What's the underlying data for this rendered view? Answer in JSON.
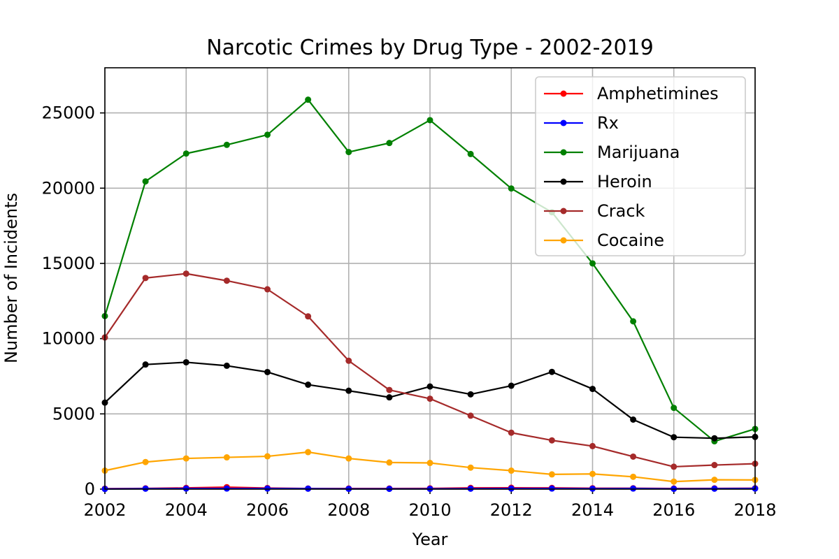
{
  "chart_data": {
    "type": "line",
    "title": "Narcotic Crimes by Drug Type - 2002-2019",
    "xlabel": "Year",
    "ylabel": "Number of Incidents",
    "xlim": [
      2002,
      2018
    ],
    "ylim": [
      0,
      28000
    ],
    "xticks": [
      2002,
      2004,
      2006,
      2008,
      2010,
      2012,
      2014,
      2016,
      2018
    ],
    "yticks": [
      0,
      5000,
      10000,
      15000,
      20000,
      25000
    ],
    "grid": true,
    "legend_position": "top-right",
    "x": [
      2002,
      2003,
      2004,
      2005,
      2006,
      2007,
      2008,
      2009,
      2010,
      2011,
      2012,
      2013,
      2014,
      2015,
      2016,
      2017,
      2018
    ],
    "series": [
      {
        "name": "Amphetimines",
        "color": "#ff0000",
        "values": [
          30,
          50,
          80,
          130,
          70,
          40,
          40,
          40,
          50,
          80,
          90,
          80,
          60,
          60,
          40,
          50,
          60
        ]
      },
      {
        "name": "Rx",
        "color": "#0000ff",
        "values": [
          10,
          30,
          40,
          40,
          40,
          30,
          20,
          20,
          20,
          30,
          40,
          40,
          30,
          40,
          20,
          30,
          40
        ]
      },
      {
        "name": "Marijuana",
        "color": "#008000",
        "values": [
          11500,
          20450,
          22300,
          22880,
          23550,
          25880,
          22400,
          23000,
          24520,
          22270,
          19980,
          18400,
          15000,
          11150,
          5400,
          3180,
          4000
        ]
      },
      {
        "name": "Heroin",
        "color": "#000000",
        "values": [
          5750,
          8280,
          8430,
          8200,
          7780,
          6940,
          6540,
          6100,
          6820,
          6300,
          6870,
          7790,
          6660,
          4620,
          3450,
          3380,
          3470
        ]
      },
      {
        "name": "Crack",
        "color": "#a52a2a",
        "values": [
          10080,
          14030,
          14320,
          13850,
          13280,
          11480,
          8530,
          6590,
          6010,
          4880,
          3750,
          3240,
          2860,
          2160,
          1490,
          1600,
          1690
        ]
      },
      {
        "name": "Cocaine",
        "color": "#ffa500",
        "values": [
          1230,
          1800,
          2040,
          2110,
          2180,
          2460,
          2040,
          1770,
          1740,
          1430,
          1230,
          980,
          1010,
          820,
          500,
          620,
          610
        ]
      }
    ]
  }
}
